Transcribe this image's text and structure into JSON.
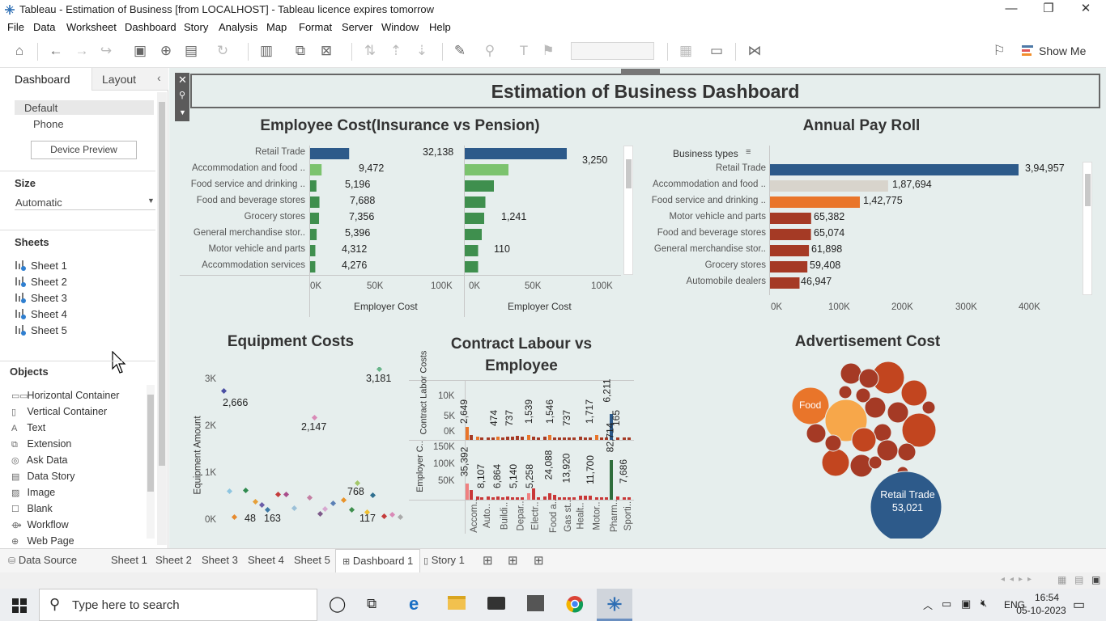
{
  "window": {
    "title": "Tableau - Estimation of Business [from LOCALHOST] - Tableau licence expires tomorrow",
    "minimize": "—",
    "restore": "❐",
    "close": "✕"
  },
  "menu": [
    "File",
    "Data",
    "Worksheet",
    "Dashboard",
    "Story",
    "Analysis",
    "Map",
    "Format",
    "Server",
    "Window",
    "Help"
  ],
  "toolbar": {
    "show_me": "Show Me"
  },
  "left_panel": {
    "tabs": {
      "dashboard": "Dashboard",
      "layout": "Layout"
    },
    "devices": {
      "default": "Default",
      "phone": "Phone",
      "preview_button": "Device Preview"
    },
    "size": {
      "label": "Size",
      "value": "Automatic"
    },
    "sheets": {
      "label": "Sheets",
      "items": [
        "Sheet 1",
        "Sheet 2",
        "Sheet 3",
        "Sheet 4",
        "Sheet 5"
      ]
    },
    "objects": {
      "label": "Objects",
      "items": [
        "Horizontal Container",
        "Vertical Container",
        "Text",
        "Extension",
        "Ask Data",
        "Data Story",
        "Image",
        "Blank",
        "Workflow",
        "Web Page"
      ]
    }
  },
  "dashboard": {
    "title": "Estimation of Business Dashboard",
    "employee_cost": {
      "title": "Employee Cost(Insurance vs Pension)",
      "xlabel": "Employer Cost",
      "ticks": [
        "0K",
        "50K",
        "100K"
      ],
      "categories": [
        "Retail Trade",
        "Accommodation and food ..",
        "Food service and drinking ..",
        "Food and beverage stores",
        "Grocery stores",
        "General merchandise stor..",
        "Motor vehicle and parts",
        "Accommodation services"
      ],
      "insurance_labels": [
        "32,138",
        "9,472",
        "5,196",
        "7,688",
        "7,356",
        "5,396",
        "4,312",
        "4,276"
      ],
      "pension_labels": [
        "3,250",
        "1,241",
        "110"
      ]
    },
    "annual_pay_roll": {
      "title": "Annual Pay Roll",
      "header": "Business types",
      "categories": [
        "Retail Trade",
        "Accommodation and food ..",
        "Food service and drinking ..",
        "Motor vehicle and parts",
        "Food and beverage stores",
        "General merchandise stor..",
        "Grocery stores",
        "Automobile dealers"
      ],
      "labels": [
        "3,94,957",
        "1,87,694",
        "1,42,775",
        "65,382",
        "65,074",
        "61,898",
        "59,408",
        "46,947"
      ],
      "ticks": [
        "0K",
        "100K",
        "200K",
        "300K",
        "400K"
      ]
    },
    "equipment_costs": {
      "title": "Equipment Costs",
      "ylabel": "Equipment Amount",
      "ticks": [
        "3K",
        "2K",
        "1K",
        "0K"
      ],
      "labels": [
        "2,666",
        "3,181",
        "2,147",
        "768",
        "48",
        "163",
        "117"
      ]
    },
    "contract_labour": {
      "title_line1": "Contract Labour vs",
      "title_line2": "Employee",
      "row1_label": "Contract Labor Costs",
      "row1_ticks": [
        "10K",
        "5K",
        "0K"
      ],
      "row1_values": [
        "2,649",
        "474",
        "737",
        "1,539",
        "1,546",
        "737",
        "1,717",
        "6,211",
        "165"
      ],
      "row2_label": "Employer C..",
      "row2_ticks": [
        "150K",
        "100K",
        "50K"
      ],
      "row2_values": [
        "35,392",
        "8,107",
        "6,864",
        "5,140",
        "5,258",
        "24,088",
        "13,920",
        "11,700",
        "82,714",
        "7,686"
      ],
      "categories": [
        "Accom..",
        "Auto..",
        "Buildi..",
        "Depar..",
        "Electr..",
        "Food a..",
        "Gas st..",
        "Healt..",
        "Motor..",
        "Pharm..",
        "Sporti.."
      ]
    },
    "advertisement": {
      "title": "Advertisement Cost",
      "food_label": "Food",
      "retail_label": "Retail Trade",
      "retail_value": "53,021"
    }
  },
  "bottom_tabs": [
    "Data Source",
    "Sheet 1",
    "Sheet 2",
    "Sheet 3",
    "Sheet 4",
    "Sheet 5",
    "Dashboard 1",
    "Story 1"
  ],
  "taskbar": {
    "search_placeholder": "Type here to search",
    "lang": "ENG",
    "time": "16:54",
    "date": "05-10-2023"
  },
  "colors": {
    "retail_blue": "#2d5a8a",
    "light_green": "#7cc36e",
    "dark_green": "#3f8f4e",
    "orange": "#e9752a",
    "brown_red": "#a53a25",
    "canvas_bg": "#e6eeed"
  },
  "chart_data": [
    {
      "type": "bar",
      "title": "Employee Cost(Insurance vs Pension)",
      "xlabel": "Employer Cost",
      "categories": [
        "Retail Trade",
        "Accommodation and food ..",
        "Food service and drinking ..",
        "Food and beverage stores",
        "Grocery stores",
        "General merchandise stor..",
        "Motor vehicle and parts",
        "Accommodation services"
      ],
      "series": [
        {
          "name": "Insurance",
          "values": [
            32138,
            9472,
            5196,
            7688,
            7356,
            5396,
            4312,
            4276
          ]
        },
        {
          "name": "Pension",
          "values": [
            84000,
            36000,
            24000,
            17000,
            16000,
            14000,
            11000,
            11000
          ]
        }
      ],
      "xlim": [
        0,
        110000
      ]
    },
    {
      "type": "bar",
      "title": "Annual Pay Roll",
      "categories": [
        "Retail Trade",
        "Accommodation and food ..",
        "Food service and drinking ..",
        "Motor vehicle and parts",
        "Food and beverage stores",
        "General merchandise stor..",
        "Grocery stores",
        "Automobile dealers"
      ],
      "values": [
        394957,
        187694,
        142775,
        65382,
        65074,
        61898,
        59408,
        46947
      ],
      "xlim": [
        0,
        440000
      ]
    }
  ]
}
